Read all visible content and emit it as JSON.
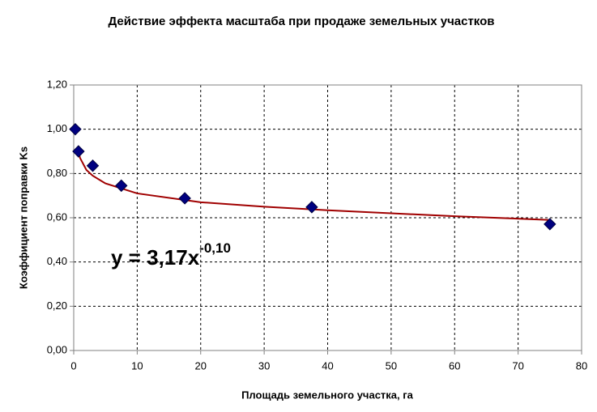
{
  "chart_data": {
    "type": "scatter",
    "title": "Действие эффекта масштаба при продаже земельных участков",
    "x_label": "Площадь земельного участка, га",
    "y_label": "Коэффициент поправки Ks",
    "annotation": {
      "text": "y = 3,17x",
      "superscript": "-0,10"
    },
    "xlim": [
      0,
      80
    ],
    "xticks": [
      0,
      10,
      20,
      30,
      40,
      50,
      60,
      70,
      80
    ],
    "ylim": [
      0,
      1.2
    ],
    "yticks": [
      {
        "value": 0,
        "label": "0,00"
      },
      {
        "value": 0.2,
        "label": "0,20"
      },
      {
        "value": 0.4,
        "label": "0,40"
      },
      {
        "value": 0.6,
        "label": "0,60"
      },
      {
        "value": 0.8,
        "label": "0,80"
      },
      {
        "value": 1.0,
        "label": "1,00"
      },
      {
        "value": 1.2,
        "label": "1,20"
      }
    ],
    "grid": true,
    "series": [
      {
        "color": "#000080",
        "marker": "diamond",
        "x": [
          0.25,
          0.75,
          3,
          7.5,
          17.5,
          37.5,
          75
        ],
        "values": [
          1.0,
          0.9,
          0.835,
          0.745,
          0.688,
          0.648,
          0.571
        ]
      },
      {
        "color": "#a00000",
        "marker": "line",
        "x": [
          0.75,
          1,
          2,
          3,
          5,
          10,
          20,
          30,
          40,
          50,
          60,
          75
        ],
        "values": [
          0.9,
          0.87,
          0.816,
          0.79,
          0.755,
          0.71,
          0.67,
          0.65,
          0.634,
          0.62,
          0.607,
          0.59
        ]
      }
    ]
  }
}
